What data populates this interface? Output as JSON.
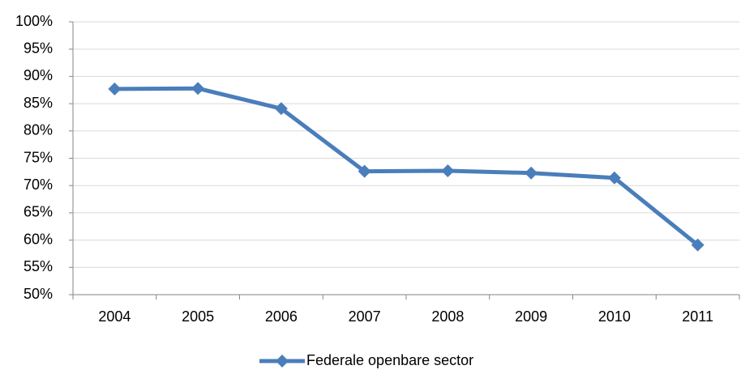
{
  "chart_data": {
    "type": "line",
    "categories": [
      "2004",
      "2005",
      "2006",
      "2007",
      "2008",
      "2009",
      "2010",
      "2011"
    ],
    "series": [
      {
        "name": "Federale openbare sector",
        "color": "#4a7ebb",
        "values": [
          87.7,
          87.8,
          84.1,
          72.6,
          72.7,
          72.3,
          71.4,
          59.1
        ]
      }
    ],
    "ylim": [
      50,
      100
    ],
    "yticks": [
      {
        "value": 50,
        "label": "50%"
      },
      {
        "value": 55,
        "label": "55%"
      },
      {
        "value": 60,
        "label": "60%"
      },
      {
        "value": 65,
        "label": "65%"
      },
      {
        "value": 70,
        "label": "70%"
      },
      {
        "value": 75,
        "label": "75%"
      },
      {
        "value": 80,
        "label": "80%"
      },
      {
        "value": 85,
        "label": "85%"
      },
      {
        "value": 90,
        "label": "90%"
      },
      {
        "value": 95,
        "label": "95%"
      },
      {
        "value": 100,
        "label": "100%"
      }
    ],
    "grid": true,
    "legend": "bottom"
  }
}
